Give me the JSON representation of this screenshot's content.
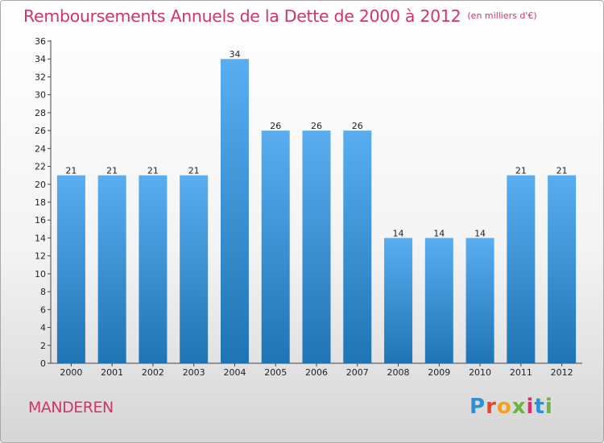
{
  "header": {
    "title": "Remboursements Annuels de la Dette de 2000 à 2012",
    "unit": "(en milliers d'€)"
  },
  "footer": {
    "commune": "MANDEREN",
    "logo_letters": [
      "P",
      "r",
      "o",
      "x",
      "i",
      "t",
      "i"
    ],
    "logo_colors": [
      "#2f8fd6",
      "#e8462b",
      "#f3a21e",
      "#6db33f",
      "#d92f6c",
      "#2f8fd6",
      "#6db33f"
    ]
  },
  "colors": {
    "bar_light": "#5aaef0",
    "bar_dark": "#1f74b4",
    "axis": "#444444"
  },
  "chart_data": {
    "type": "bar",
    "title": "Remboursements Annuels de la Dette de 2000 à 2012",
    "xlabel": "",
    "ylabel": "",
    "categories": [
      "2000",
      "2001",
      "2002",
      "2003",
      "2004",
      "2005",
      "2006",
      "2007",
      "2008",
      "2009",
      "2010",
      "2011",
      "2012"
    ],
    "values": [
      21,
      21,
      21,
      21,
      34,
      26,
      26,
      26,
      14,
      14,
      14,
      21,
      21
    ],
    "ylim": [
      0,
      36
    ],
    "yticks": [
      0,
      2,
      4,
      6,
      8,
      10,
      12,
      14,
      16,
      18,
      20,
      22,
      24,
      26,
      28,
      30,
      32,
      34,
      36
    ],
    "grid": false
  }
}
